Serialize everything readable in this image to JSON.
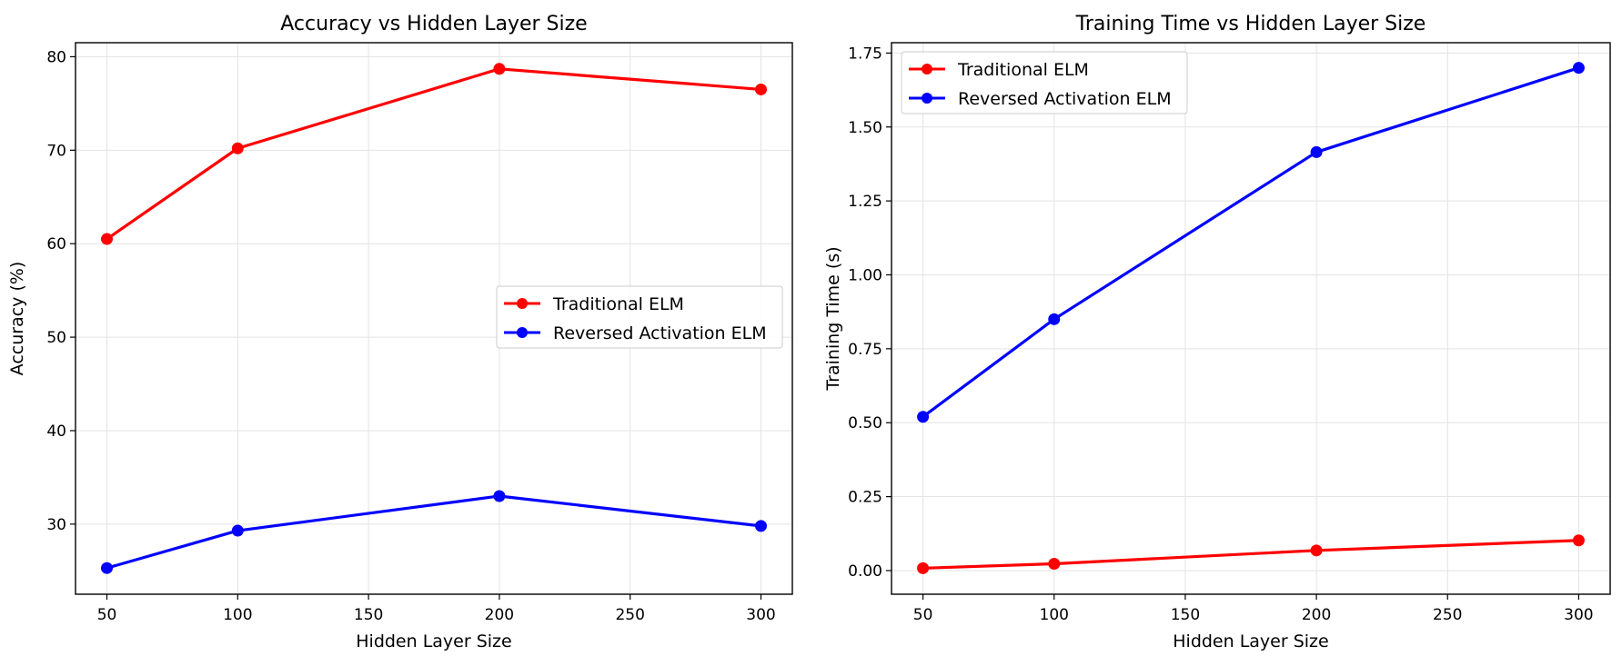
{
  "chart_data": [
    {
      "type": "line",
      "title": "Accuracy vs Hidden Layer Size",
      "xlabel": "Hidden Layer Size",
      "ylabel": "Accuracy (%)",
      "x": [
        50,
        100,
        200,
        300
      ],
      "xlim": [
        38,
        312
      ],
      "ylim": [
        22.5,
        81.5
      ],
      "xticks": [
        50,
        100,
        150,
        200,
        250,
        300
      ],
      "yticks": [
        30,
        40,
        50,
        60,
        70,
        80
      ],
      "grid": true,
      "legend_position": "center-right",
      "series": [
        {
          "name": "Traditional ELM",
          "color": "#ff0000",
          "values": [
            60.5,
            70.2,
            78.7,
            76.5
          ]
        },
        {
          "name": "Reversed Activation ELM",
          "color": "#0000ff",
          "values": [
            25.3,
            29.3,
            33.0,
            29.8
          ]
        }
      ]
    },
    {
      "type": "line",
      "title": "Training Time vs Hidden Layer Size",
      "xlabel": "Hidden Layer Size",
      "ylabel": "Training Time (s)",
      "x": [
        50,
        100,
        200,
        300
      ],
      "xlim": [
        38,
        312
      ],
      "ylim": [
        -0.08,
        1.785
      ],
      "xticks": [
        50,
        100,
        150,
        200,
        250,
        300
      ],
      "yticks": [
        "0.00",
        "0.25",
        "0.50",
        "0.75",
        "1.00",
        "1.25",
        "1.50",
        "1.75"
      ],
      "grid": true,
      "legend_position": "top-left",
      "series": [
        {
          "name": "Traditional ELM",
          "color": "#ff0000",
          "values": [
            0.008,
            0.023,
            0.068,
            0.102
          ]
        },
        {
          "name": "Reversed Activation ELM",
          "color": "#0000ff",
          "values": [
            0.52,
            0.85,
            1.415,
            1.7
          ]
        }
      ]
    }
  ]
}
